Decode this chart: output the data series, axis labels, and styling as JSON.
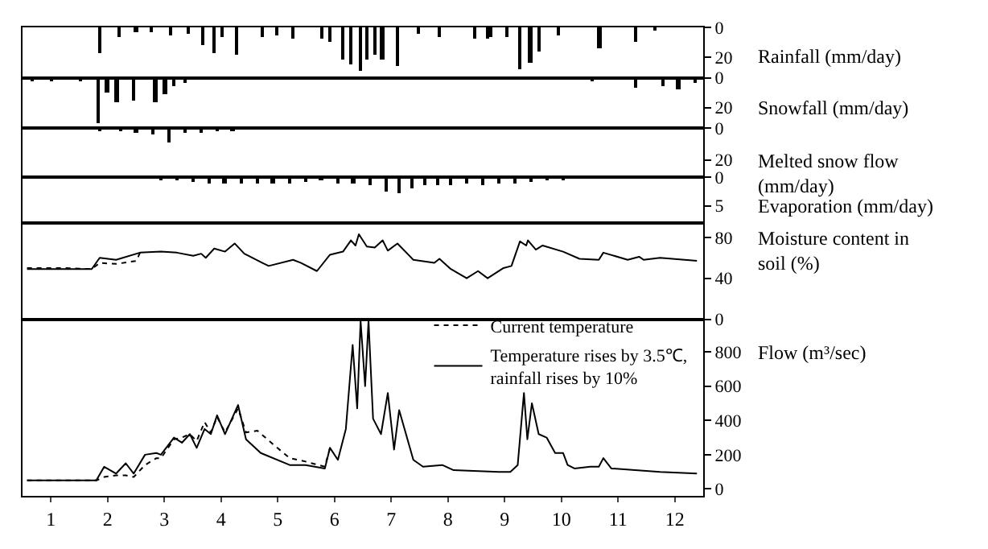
{
  "chart_data": [
    {
      "type": "bar",
      "ylabel": "Rainfall (mm/day)",
      "xlim": [
        0.5,
        12.5
      ],
      "ylim": [
        34,
        0
      ],
      "yticks": [
        0,
        20
      ],
      "tick_labels": "y",
      "grid": false,
      "series": [
        {
          "color": "#000000",
          "x": [
            1.86,
            2.2,
            2.51,
            2.77,
            3.11,
            3.42,
            3.68,
            3.88,
            4.02,
            4.27,
            4.73,
            4.98,
            5.27,
            5.78,
            5.92,
            6.15,
            6.29,
            6.46,
            6.57,
            6.71,
            6.85,
            7.11,
            7.48,
            7.85,
            8.47,
            8.7,
            8.76,
            9.04,
            9.27,
            9.46,
            9.61,
            9.95,
            10.68,
            11.31,
            11.65
          ],
          "values": [
            17,
            7,
            3,
            3,
            5,
            4,
            12,
            17,
            6,
            18,
            6,
            5,
            8,
            8,
            10,
            22,
            25,
            29,
            22,
            18,
            22,
            26,
            4,
            6,
            8,
            8,
            7,
            6,
            28,
            24,
            16,
            5,
            14,
            10,
            2
          ]
        }
      ]
    },
    {
      "type": "bar",
      "ylabel": "Snowfall (mm/day)",
      "xlim": [
        0.5,
        12.5
      ],
      "ylim": [
        34,
        0
      ],
      "yticks": [
        0,
        20
      ],
      "tick_labels": "y",
      "grid": false,
      "series": [
        {
          "color": "#000000",
          "x": [
            0.67,
            1.01,
            1.52,
            1.83,
            2.0,
            2.17,
            2.46,
            2.85,
            3.02,
            3.17,
            3.37,
            10.54,
            11.31,
            11.79,
            12.07,
            12.36
          ],
          "values": [
            2,
            2,
            2,
            30,
            10,
            16,
            15,
            16,
            11,
            5,
            3,
            2,
            6,
            5,
            8,
            3
          ]
        }
      ]
    },
    {
      "type": "bar",
      "ylabel": "Melted snow flow\n(mm/day)",
      "xlim": [
        0.5,
        12.5
      ],
      "ylim": [
        31,
        0
      ],
      "yticks": [
        0,
        20
      ],
      "tick_labels": "y",
      "grid": false,
      "series": [
        {
          "color": "#000000",
          "x": [
            1.86,
            2.23,
            2.51,
            2.8,
            3.08,
            3.37,
            3.65,
            3.93,
            4.21,
            4.5
          ],
          "values": [
            2,
            2,
            3,
            4,
            9,
            3,
            3,
            2,
            2,
            1
          ]
        }
      ]
    },
    {
      "type": "bar",
      "ylabel": "Evaporation (mm/day)",
      "xlim": [
        0.5,
        12.5
      ],
      "ylim": [
        8,
        0
      ],
      "yticks": [
        0,
        5
      ],
      "tick_labels": "y",
      "grid": false,
      "series": [
        {
          "color": "#000000",
          "x": [
            2.94,
            3.22,
            3.51,
            3.79,
            4.07,
            4.36,
            4.64,
            4.92,
            5.21,
            5.49,
            5.77,
            6.06,
            6.34,
            6.63,
            6.91,
            7.14,
            7.37,
            7.59,
            7.82,
            8.05,
            8.33,
            8.62,
            8.9,
            9.18,
            9.47,
            9.75,
            10.03
          ],
          "values": [
            0.3,
            0.5,
            0.8,
            1.0,
            1.0,
            1.2,
            1.0,
            1.2,
            1.0,
            0.8,
            0.6,
            1.0,
            1.2,
            1.5,
            2.5,
            2.8,
            2.0,
            1.5,
            1.5,
            1.5,
            1.2,
            1.4,
            1.0,
            1.0,
            0.8,
            0.5,
            0.3
          ]
        }
      ]
    },
    {
      "type": "line",
      "ylabel": "Moisture content in\nsoil (%)",
      "xlim": [
        0.5,
        12.5
      ],
      "ylim": [
        0,
        94
      ],
      "yticks": [
        0,
        40,
        80
      ],
      "tick_labels": "y",
      "grid": false,
      "series": [
        {
          "color": "#000000",
          "line_style": "solid",
          "x": [
            0.58,
            1.72,
            1.86,
            2.15,
            2.57,
            2.94,
            3.22,
            3.51,
            3.65,
            3.73,
            3.88,
            4.07,
            4.24,
            4.41,
            4.73,
            4.84,
            5.27,
            5.41,
            5.69,
            5.92,
            6.15,
            6.29,
            6.37,
            6.43,
            6.57,
            6.71,
            6.85,
            6.94,
            7.11,
            7.39,
            7.76,
            7.85,
            8.05,
            8.33,
            8.53,
            8.7,
            8.98,
            9.12,
            9.27,
            9.38,
            9.41,
            9.55,
            9.67,
            10.03,
            10.32,
            10.66,
            10.74,
            11.17,
            11.37,
            11.45,
            11.74,
            12.39
          ],
          "values": [
            49,
            49,
            60,
            58,
            65,
            66,
            65,
            62,
            64,
            60,
            69,
            66,
            74,
            64,
            55,
            52,
            58,
            55,
            47,
            63,
            66,
            77,
            72,
            83,
            71,
            70,
            77,
            67,
            74,
            58,
            55,
            59,
            49,
            40,
            47,
            40,
            50,
            52,
            76,
            72,
            77,
            68,
            72,
            66,
            59,
            58,
            65,
            58,
            61,
            58,
            60,
            57
          ]
        },
        {
          "color": "#000000",
          "line_style": "dotted",
          "x": [
            0.58,
            1.22,
            1.72,
            1.86,
            2.15,
            2.51,
            2.57
          ],
          "values": [
            50,
            50,
            49,
            55,
            54,
            57,
            65
          ]
        }
      ]
    },
    {
      "type": "line",
      "ylabel": "Flow (m³/sec)",
      "xlim": [
        0.5,
        12.5
      ],
      "ylim": [
        -40,
        990
      ],
      "yticks": [
        0,
        200,
        400,
        600,
        800
      ],
      "xticks": [
        1,
        2,
        3,
        4,
        5,
        6,
        7,
        8,
        9,
        10,
        11,
        12
      ],
      "grid": false,
      "legend": "top right",
      "series": [
        {
          "name": "Current temperature",
          "color": "#000000",
          "line_style": "dotted",
          "x": [
            0.58,
            1.8,
            1.94,
            2.15,
            2.32,
            2.46,
            2.66,
            2.86,
            2.94,
            3.17,
            3.31,
            3.45,
            3.57,
            3.71,
            3.82,
            3.93,
            4.07,
            4.3,
            4.44,
            4.64,
            4.92,
            5.21,
            5.49,
            5.83,
            5.92
          ],
          "values": [
            50,
            50,
            70,
            80,
            80,
            70,
            140,
            180,
            180,
            290,
            300,
            320,
            280,
            390,
            330,
            420,
            330,
            470,
            330,
            340,
            260,
            180,
            160,
            130,
            240
          ]
        },
        {
          "name": "Temperature rises by 3.5℃,\nrainfall rises by 10%",
          "color": "#000000",
          "line_style": "solid",
          "x": [
            0.58,
            1.8,
            1.94,
            2.15,
            2.32,
            2.46,
            2.66,
            2.86,
            2.94,
            3.17,
            3.31,
            3.45,
            3.57,
            3.71,
            3.82,
            3.93,
            4.07,
            4.3,
            4.44,
            4.7,
            5.21,
            5.49,
            5.83,
            5.92,
            6.06,
            6.2,
            6.32,
            6.4,
            6.46,
            6.54,
            6.6,
            6.68,
            6.82,
            6.94,
            7.05,
            7.14,
            7.39,
            7.56,
            7.9,
            8.1,
            8.9,
            9.1,
            9.23,
            9.34,
            9.4,
            9.48,
            9.6,
            9.74,
            9.89,
            10.03,
            10.11,
            10.23,
            10.51,
            10.66,
            10.74,
            10.88,
            11.74,
            12.39
          ],
          "values": [
            50,
            50,
            130,
            90,
            150,
            90,
            200,
            210,
            200,
            300,
            270,
            320,
            240,
            350,
            320,
            430,
            320,
            490,
            290,
            210,
            140,
            140,
            120,
            240,
            170,
            350,
            840,
            470,
            980,
            600,
            980,
            410,
            320,
            560,
            230,
            460,
            170,
            130,
            140,
            110,
            100,
            100,
            140,
            560,
            290,
            500,
            320,
            300,
            210,
            210,
            140,
            120,
            130,
            130,
            180,
            120,
            100,
            90
          ]
        }
      ]
    }
  ]
}
